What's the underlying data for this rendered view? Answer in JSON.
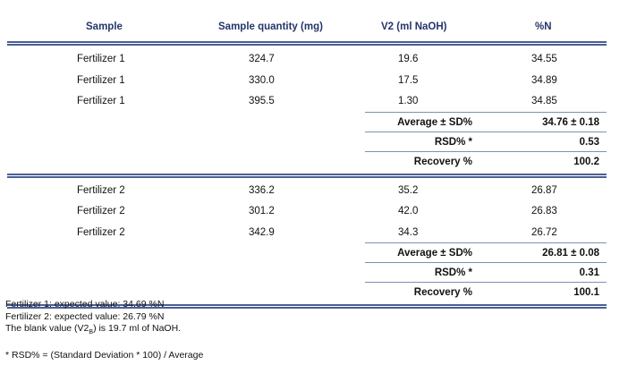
{
  "table": {
    "headers": [
      "Sample",
      "Sample quantity (mg)",
      "V2 (ml NaOH)",
      "%N"
    ],
    "groups": [
      {
        "rows": [
          [
            "Fertilizer 1",
            "324.7",
            "19.6",
            "34.55"
          ],
          [
            "Fertilizer 1",
            "330.0",
            "17.5",
            "34.89"
          ],
          [
            "Fertilizer 1",
            "395.5",
            "1.30",
            "34.85"
          ]
        ],
        "average_label": "Average ± SD%",
        "average_value": "34.76 ± 0.18",
        "rsd_label": "RSD% *",
        "rsd_value": "0.53",
        "recovery_label": "Recovery %",
        "recovery_value": "100.2"
      },
      {
        "rows": [
          [
            "Fertilizer 2",
            "336.2",
            "35.2",
            "26.87"
          ],
          [
            "Fertilizer 2",
            "301.2",
            "42.0",
            "26.83"
          ],
          [
            "Fertilizer 2",
            "342.9",
            "34.3",
            "26.72"
          ]
        ],
        "average_label": "Average ± SD%",
        "average_value": "26.81 ± 0.08",
        "rsd_label": "RSD% *",
        "rsd_value": "0.31",
        "recovery_label": "Recovery %",
        "recovery_value": "100.1"
      }
    ]
  },
  "notes": {
    "line1": "Fertilizer 1: expected value: 34.69 %N",
    "line2": "Fertilizer 2: expected value: 26.79 %N",
    "line3_pre": "The blank value (V2",
    "line3_sub": "B",
    "line3_post": ") is 19.7 ml of NaOH.",
    "footnote": "* RSD% = (Standard Deviation * 100) / Average"
  }
}
